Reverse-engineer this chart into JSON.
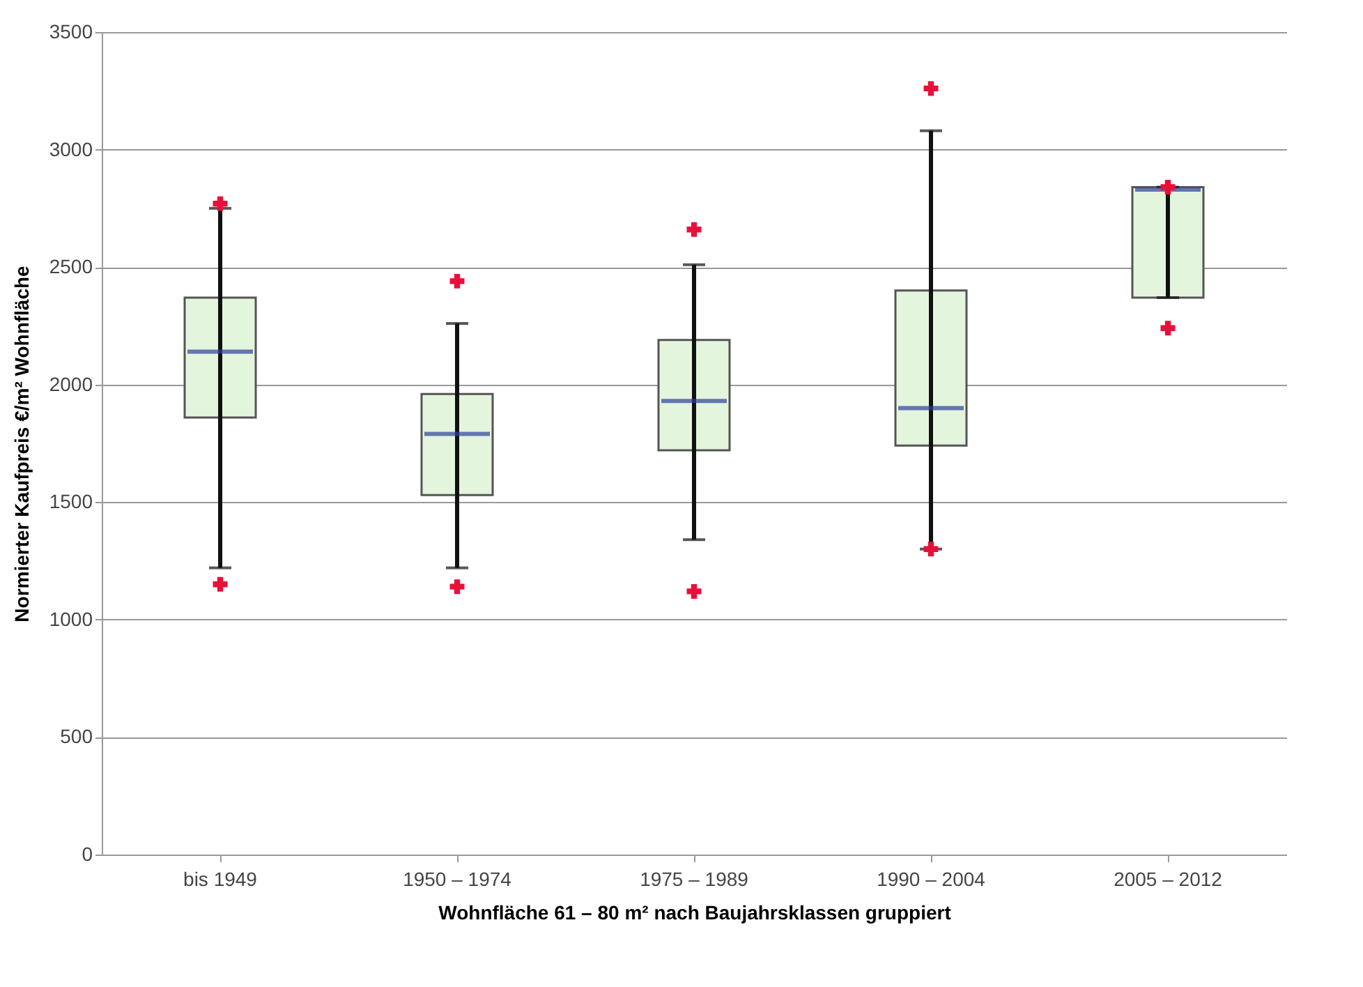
{
  "chart_data": {
    "type": "box",
    "xlabel": "Wohnfläche 61 – 80 m² nach Baujahrsklassen gruppiert",
    "ylabel": "Normierter Kaufpreis €/m² Wohnfläche",
    "categories": [
      "bis 1949",
      "1950 – 1974",
      "1975 – 1989",
      "1990 – 2004",
      "2005 – 2012"
    ],
    "color": "#e4f5de",
    "boxes": [
      {
        "low": 1220,
        "q1": 1860,
        "median": 2140,
        "q3": 2370,
        "high": 2750,
        "outliers": [
          2770,
          1150
        ]
      },
      {
        "low": 1220,
        "q1": 1530,
        "median": 1790,
        "q3": 1960,
        "high": 2260,
        "outliers": [
          2440,
          1140
        ]
      },
      {
        "low": 1340,
        "q1": 1720,
        "median": 1930,
        "q3": 2190,
        "high": 2510,
        "outliers": [
          2660,
          1120
        ]
      },
      {
        "low": 1300,
        "q1": 1740,
        "median": 1900,
        "q3": 2400,
        "high": 3080,
        "outliers": [
          3260,
          1300
        ]
      },
      {
        "low": 2370,
        "q1": 2370,
        "median": 2830,
        "q3": 2840,
        "high": 2840,
        "outliers": [
          2840,
          2240
        ]
      }
    ],
    "ylim": [
      0,
      3500
    ],
    "yticks": [
      0,
      500,
      1000,
      1500,
      2000,
      2500,
      3000,
      3500
    ],
    "grid": "y"
  }
}
